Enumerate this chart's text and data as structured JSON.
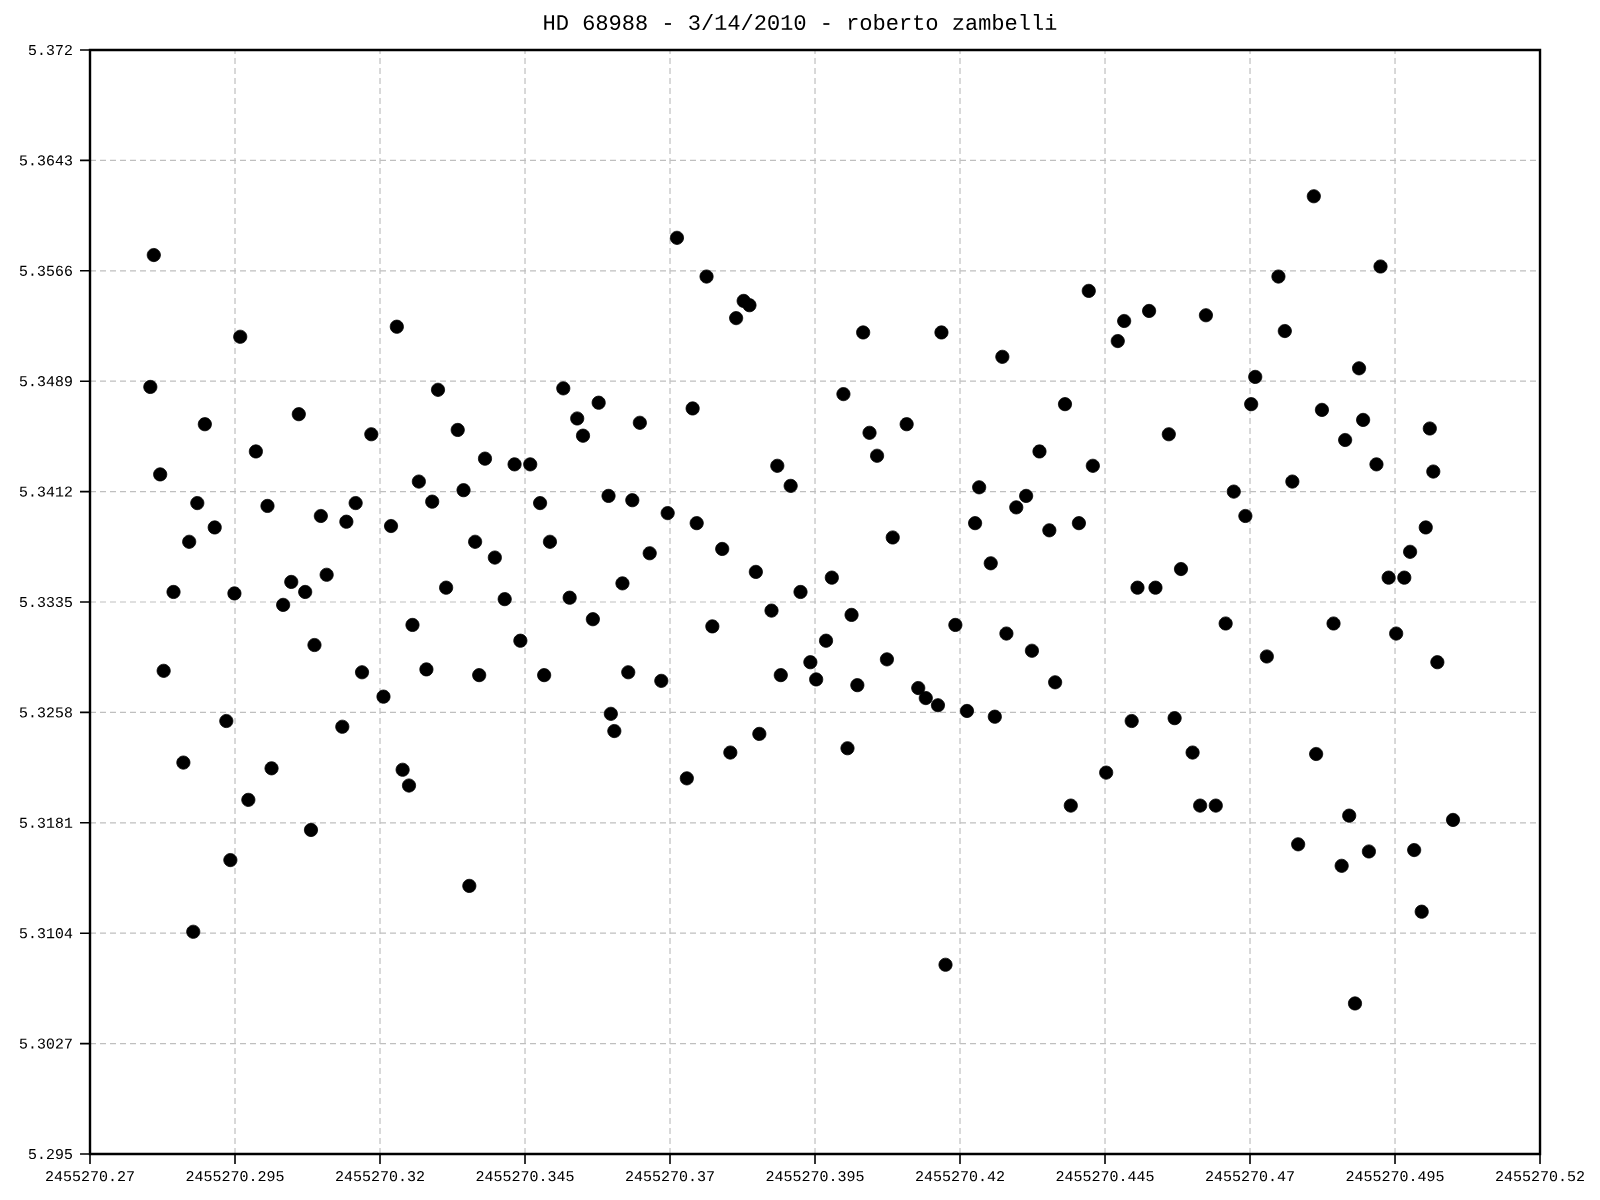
{
  "chart_data": {
    "type": "scatter",
    "title": "HD 68988 - 3/14/2010 - roberto zambelli",
    "color": "#000000",
    "marker": "circle",
    "grid": true,
    "xlim": [
      2455270.27,
      2455270.52
    ],
    "xticks": [
      2455270.27,
      2455270.295,
      2455270.32,
      2455270.345,
      2455270.37,
      2455270.395,
      2455270.42,
      2455270.445,
      2455270.47,
      2455270.495,
      2455270.52
    ],
    "ylim": [
      5.295,
      5.372
    ],
    "yticks": [
      5.295,
      5.3027,
      5.3104,
      5.3181,
      5.3258,
      5.3335,
      5.3412,
      5.3489,
      5.3566,
      5.3643,
      5.372
    ],
    "x": [
      2455270.2804,
      2455270.281,
      2455270.2821,
      2455270.2827,
      2455270.2844,
      2455270.2861,
      2455270.2871,
      2455270.2878,
      2455270.2885,
      2455270.2898,
      2455270.2915,
      2455270.2935,
      2455270.2942,
      2455270.2949,
      2455270.2959,
      2455270.2973,
      2455270.2986,
      2455270.3006,
      2455270.3013,
      2455270.3033,
      2455270.3047,
      2455270.306,
      2455270.3071,
      2455270.3081,
      2455270.3087,
      2455270.3098,
      2455270.3108,
      2455270.3135,
      2455270.3142,
      2455270.3158,
      2455270.3169,
      2455270.3185,
      2455270.3206,
      2455270.3219,
      2455270.3229,
      2455270.3239,
      2455270.325,
      2455270.3256,
      2455270.3267,
      2455270.328,
      2455270.329,
      2455270.33,
      2455270.3314,
      2455270.3334,
      2455270.3344,
      2455270.3354,
      2455270.3364,
      2455270.3371,
      2455270.3381,
      2455270.3398,
      2455270.3415,
      2455270.3432,
      2455270.3442,
      2455270.3459,
      2455270.3476,
      2455270.3483,
      2455270.3493,
      2455270.3516,
      2455270.3527,
      2455270.354,
      2455270.355,
      2455270.3567,
      2455270.3577,
      2455270.3594,
      2455270.3598,
      2455270.3604,
      2455270.3618,
      2455270.3628,
      2455270.3635,
      2455270.3648,
      2455270.3665,
      2455270.3685,
      2455270.3696,
      2455270.3712,
      2455270.3729,
      2455270.3739,
      2455270.3746,
      2455270.3763,
      2455270.3773,
      2455270.379,
      2455270.3804,
      2455270.3814,
      2455270.3827,
      2455270.3837,
      2455270.3848,
      2455270.3854,
      2455270.3875,
      2455270.3885,
      2455270.3891,
      2455270.3908,
      2455270.3925,
      2455270.3942,
      2455270.3952,
      2455270.3969,
      2455270.3979,
      2455270.3999,
      2455270.4006,
      2455270.4013,
      2455270.4023,
      2455270.4033,
      2455270.4044,
      2455270.4057,
      2455270.4074,
      2455270.4084,
      2455270.4108,
      2455270.4128,
      2455270.4141,
      2455270.4162,
      2455270.4168,
      2455270.4175,
      2455270.4192,
      2455270.4212,
      2455270.4226,
      2455270.4233,
      2455270.4253,
      2455270.426,
      2455270.4273,
      2455270.428,
      2455270.4297,
      2455270.4314,
      2455270.4324,
      2455270.4337,
      2455270.4354,
      2455270.4364,
      2455270.4381,
      2455270.4391,
      2455270.4405,
      2455270.4422,
      2455270.4429,
      2455270.4452,
      2455270.4472,
      2455270.4483,
      2455270.4496,
      2455270.4506,
      2455270.4526,
      2455270.4537,
      2455270.456,
      2455270.457,
      2455270.4581,
      2455270.4601,
      2455270.4614,
      2455270.4624,
      2455270.4641,
      2455270.4658,
      2455270.4672,
      2455270.4692,
      2455270.4702,
      2455270.4709,
      2455270.4729,
      2455270.4749,
      2455270.476,
      2455270.4773,
      2455270.4783,
      2455270.481,
      2455270.4814,
      2455270.4824,
      2455270.4844,
      2455270.4858,
      2455270.4864,
      2455270.4871,
      2455270.4881,
      2455270.4888,
      2455270.4895,
      2455270.4905,
      2455270.4918,
      2455270.4925,
      2455270.4939,
      2455270.4952,
      2455270.4966,
      2455270.4976,
      2455270.4983,
      2455270.4996,
      2455270.5003,
      2455270.501,
      2455270.5016,
      2455270.5023,
      2455270.505
    ],
    "values": [
      5.3485,
      5.3577,
      5.3424,
      5.3287,
      5.3342,
      5.3223,
      5.3377,
      5.3105,
      5.3404,
      5.3459,
      5.3387,
      5.3252,
      5.3155,
      5.3341,
      5.352,
      5.3197,
      5.344,
      5.3402,
      5.3219,
      5.3333,
      5.3349,
      5.3466,
      5.3342,
      5.3176,
      5.3305,
      5.3395,
      5.3354,
      5.3248,
      5.3391,
      5.3404,
      5.3286,
      5.3452,
      5.3269,
      5.3388,
      5.3527,
      5.3218,
      5.3207,
      5.3319,
      5.3419,
      5.3288,
      5.3405,
      5.3483,
      5.3345,
      5.3455,
      5.3413,
      5.3137,
      5.3377,
      5.3284,
      5.3435,
      5.3366,
      5.3337,
      5.3431,
      5.3308,
      5.3431,
      5.3404,
      5.3284,
      5.3377,
      5.3484,
      5.3338,
      5.3463,
      5.3451,
      5.3323,
      5.3474,
      5.3409,
      5.3257,
      5.3245,
      5.3348,
      5.3286,
      5.3406,
      5.346,
      5.3369,
      5.328,
      5.3397,
      5.3589,
      5.3212,
      5.347,
      5.339,
      5.3562,
      5.3318,
      5.3372,
      5.323,
      5.3533,
      5.3545,
      5.3542,
      5.3356,
      5.3243,
      5.3329,
      5.343,
      5.3284,
      5.3416,
      5.3342,
      5.3293,
      5.3281,
      5.3308,
      5.3352,
      5.348,
      5.3233,
      5.3326,
      5.3277,
      5.3523,
      5.3453,
      5.3437,
      5.3295,
      5.338,
      5.3459,
      5.3275,
      5.3268,
      5.3263,
      5.3523,
      5.3082,
      5.3319,
      5.3259,
      5.339,
      5.3415,
      5.3362,
      5.3255,
      5.3506,
      5.3313,
      5.3401,
      5.3409,
      5.3301,
      5.344,
      5.3385,
      5.3279,
      5.3473,
      5.3193,
      5.339,
      5.3552,
      5.343,
      5.3216,
      5.3517,
      5.3531,
      5.3252,
      5.3345,
      5.3538,
      5.3345,
      5.3452,
      5.3254,
      5.3358,
      5.323,
      5.3193,
      5.3535,
      5.3193,
      5.332,
      5.3412,
      5.3395,
      5.3473,
      5.3492,
      5.3297,
      5.3562,
      5.3524,
      5.3419,
      5.3166,
      5.3618,
      5.3229,
      5.3469,
      5.332,
      5.3151,
      5.3448,
      5.3186,
      5.3055,
      5.3498,
      5.3462,
      5.3161,
      5.3431,
      5.3569,
      5.3352,
      5.3313,
      5.3352,
      5.337,
      5.3162,
      5.3119,
      5.3387,
      5.3456,
      5.3426,
      5.3293,
      5.3183
    ]
  }
}
